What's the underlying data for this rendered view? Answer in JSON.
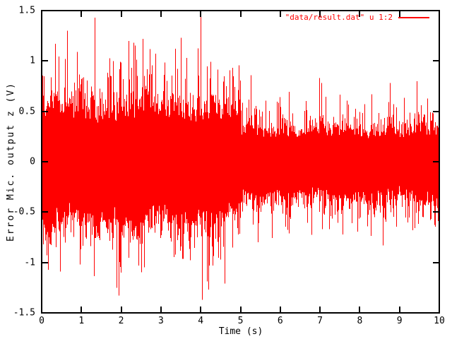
{
  "chart_data": {
    "type": "line",
    "title": "",
    "xlabel": "Time (s)",
    "ylabel": "Error Mic. output z (V)",
    "legend": {
      "label": "\"data/result.dat\" u 1:2",
      "position": "top-right"
    },
    "xlim": [
      0,
      10
    ],
    "ylim": [
      -1.5,
      1.5
    ],
    "x_ticks": [
      0,
      1,
      2,
      3,
      4,
      5,
      6,
      7,
      8,
      9,
      10
    ],
    "x_tick_labels": [
      "0",
      "1",
      "2",
      "3",
      "4",
      "5",
      "6",
      "7",
      "8",
      "9",
      "10"
    ],
    "y_ticks": [
      -1.5,
      -1,
      -0.5,
      0,
      0.5,
      1,
      1.5
    ],
    "y_tick_labels": [
      "-1.5",
      "-1",
      "-0.5",
      "0",
      "0.5",
      "1",
      "1.5"
    ],
    "grid": false,
    "background": "#ffffff",
    "border_color": "#000000",
    "line_color": "#ff0000",
    "signal": {
      "description": "Dense red noise trace rendered as per-pixel-column min/max envelope; loud segment 0-5 s, quieter segment 5-10 s with abrupt transition at t=5.",
      "seed": 42,
      "segments": [
        {
          "t_start": 0,
          "t_end": 5,
          "core_up": 0.5,
          "core_dn": 0.54,
          "tail_up": 0.16,
          "tail_dn": 0.17,
          "cap_up": 1.25,
          "cap_dn": 1.3,
          "summary": "solid band approx +/-0.45 V, frequent spikes to +/-1.0 V"
        },
        {
          "t_start": 5,
          "t_end": 10,
          "core_up": 0.3,
          "core_dn": 0.33,
          "tail_up": 0.11,
          "tail_dn": 0.11,
          "cap_up": 0.8,
          "cap_dn": 0.8,
          "summary": "solid band approx +/-0.30 V, frequent spikes to +/-0.6 V"
        }
      ],
      "notable_extremes": [
        {
          "t": 0.34,
          "v": 1.17
        },
        {
          "t": 0.47,
          "v": -1.09
        },
        {
          "t": 0.64,
          "v": 1.3
        },
        {
          "t": 1.33,
          "v": 1.43
        },
        {
          "t": 1.88,
          "v": -1.25
        },
        {
          "t": 1.93,
          "v": -1.33
        },
        {
          "t": 2.19,
          "v": 1.2
        },
        {
          "t": 2.54,
          "v": 1.22
        },
        {
          "t": 3.5,
          "v": 1.23
        },
        {
          "t": 4.0,
          "v": 1.44
        },
        {
          "t": 4.03,
          "v": -1.37
        },
        {
          "t": 4.19,
          "v": -1.27
        },
        {
          "t": 4.49,
          "v": -0.97
        },
        {
          "t": 5.26,
          "v": 0.86
        },
        {
          "t": 6.98,
          "v": 0.83
        },
        {
          "t": 8.58,
          "v": -0.83
        },
        {
          "t": 8.76,
          "v": 0.78
        }
      ]
    }
  }
}
